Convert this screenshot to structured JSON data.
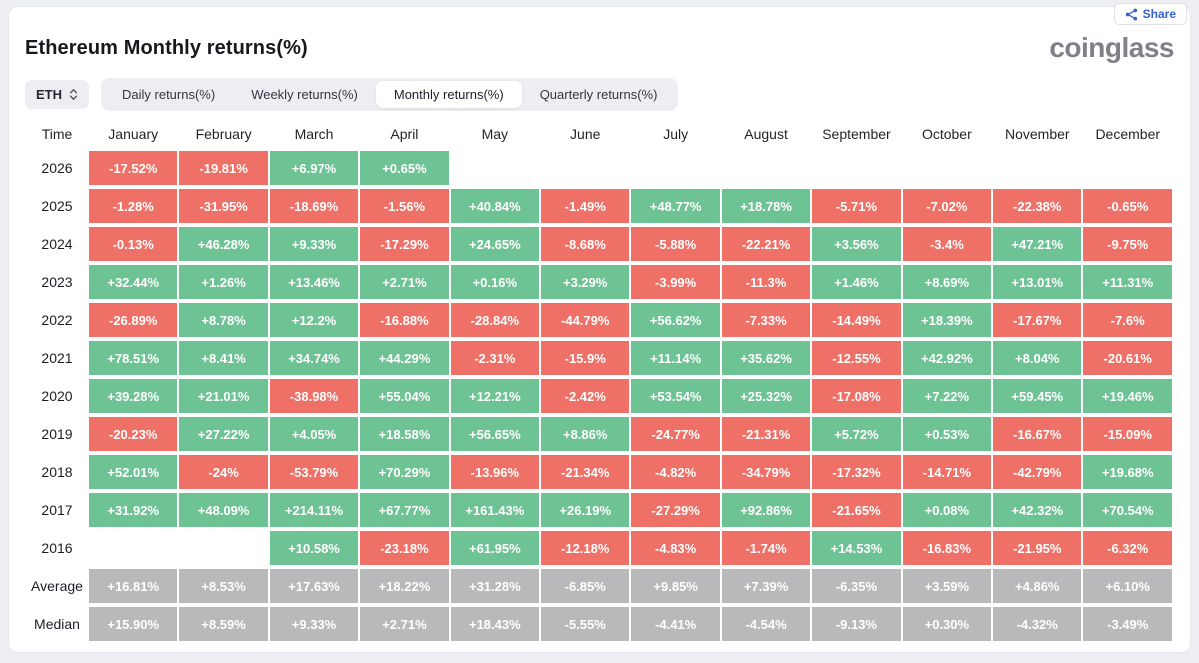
{
  "page": {
    "title": "Ethereum Monthly returns(%)",
    "brand": "coinglass",
    "share_label": "Share"
  },
  "controls": {
    "coin_selector": {
      "value": "ETH",
      "chevron_icon": "up-down-chevron-icon"
    },
    "tabs": [
      {
        "label": "Daily returns(%)",
        "active": false
      },
      {
        "label": "Weekly returns(%)",
        "active": false
      },
      {
        "label": "Monthly returns(%)",
        "active": true
      },
      {
        "label": "Quarterly returns(%)",
        "active": false
      }
    ]
  },
  "colors": {
    "positive": "#6ec394",
    "negative": "#ee7067",
    "neutral": "#b7b9bb",
    "accent_blue": "#3560d6"
  },
  "table": {
    "columns": [
      "Time",
      "January",
      "February",
      "March",
      "April",
      "May",
      "June",
      "July",
      "August",
      "September",
      "October",
      "November",
      "December"
    ],
    "rows": [
      {
        "label": "2026",
        "type": "year",
        "values": [
          "-17.52%",
          "-19.81%",
          "+6.97%",
          "+0.65%",
          "",
          "",
          "",
          "",
          "",
          "",
          "",
          ""
        ]
      },
      {
        "label": "2025",
        "type": "year",
        "values": [
          "-1.28%",
          "-31.95%",
          "-18.69%",
          "-1.56%",
          "+40.84%",
          "-1.49%",
          "+48.77%",
          "+18.78%",
          "-5.71%",
          "-7.02%",
          "-22.38%",
          "-0.65%"
        ]
      },
      {
        "label": "2024",
        "type": "year",
        "values": [
          "-0.13%",
          "+46.28%",
          "+9.33%",
          "-17.29%",
          "+24.65%",
          "-8.68%",
          "-5.88%",
          "-22.21%",
          "+3.56%",
          "-3.4%",
          "+47.21%",
          "-9.75%"
        ]
      },
      {
        "label": "2023",
        "type": "year",
        "values": [
          "+32.44%",
          "+1.26%",
          "+13.46%",
          "+2.71%",
          "+0.16%",
          "+3.29%",
          "-3.99%",
          "-11.3%",
          "+1.46%",
          "+8.69%",
          "+13.01%",
          "+11.31%"
        ]
      },
      {
        "label": "2022",
        "type": "year",
        "values": [
          "-26.89%",
          "+8.78%",
          "+12.2%",
          "-16.88%",
          "-28.84%",
          "-44.79%",
          "+56.62%",
          "-7.33%",
          "-14.49%",
          "+18.39%",
          "-17.67%",
          "-7.6%"
        ]
      },
      {
        "label": "2021",
        "type": "year",
        "values": [
          "+78.51%",
          "+8.41%",
          "+34.74%",
          "+44.29%",
          "-2.31%",
          "-15.9%",
          "+11.14%",
          "+35.62%",
          "-12.55%",
          "+42.92%",
          "+8.04%",
          "-20.61%"
        ]
      },
      {
        "label": "2020",
        "type": "year",
        "values": [
          "+39.28%",
          "+21.01%",
          "-38.98%",
          "+55.04%",
          "+12.21%",
          "-2.42%",
          "+53.54%",
          "+25.32%",
          "-17.08%",
          "+7.22%",
          "+59.45%",
          "+19.46%"
        ]
      },
      {
        "label": "2019",
        "type": "year",
        "values": [
          "-20.23%",
          "+27.22%",
          "+4.05%",
          "+18.58%",
          "+56.65%",
          "+8.86%",
          "-24.77%",
          "-21.31%",
          "+5.72%",
          "+0.53%",
          "-16.67%",
          "-15.09%"
        ]
      },
      {
        "label": "2018",
        "type": "year",
        "values": [
          "+52.01%",
          "-24%",
          "-53.79%",
          "+70.29%",
          "-13.96%",
          "-21.34%",
          "-4.82%",
          "-34.79%",
          "-17.32%",
          "-14.71%",
          "-42.79%",
          "+19.68%"
        ]
      },
      {
        "label": "2017",
        "type": "year",
        "values": [
          "+31.92%",
          "+48.09%",
          "+214.11%",
          "+67.77%",
          "+161.43%",
          "+26.19%",
          "-27.29%",
          "+92.86%",
          "-21.65%",
          "+0.08%",
          "+42.32%",
          "+70.54%"
        ]
      },
      {
        "label": "2016",
        "type": "year",
        "values": [
          "",
          "",
          "+10.58%",
          "-23.18%",
          "+61.95%",
          "-12.18%",
          "-4.83%",
          "-1.74%",
          "+14.53%",
          "-16.83%",
          "-21.95%",
          "-6.32%"
        ]
      },
      {
        "label": "Average",
        "type": "stat",
        "values": [
          "+16.81%",
          "+8.53%",
          "+17.63%",
          "+18.22%",
          "+31.28%",
          "-6.85%",
          "+9.85%",
          "+7.39%",
          "-6.35%",
          "+3.59%",
          "+4.86%",
          "+6.10%"
        ]
      },
      {
        "label": "Median",
        "type": "stat",
        "values": [
          "+15.90%",
          "+8.59%",
          "+9.33%",
          "+2.71%",
          "+18.43%",
          "-5.55%",
          "-4.41%",
          "-4.54%",
          "-9.13%",
          "+0.30%",
          "-4.32%",
          "-3.49%"
        ]
      }
    ]
  }
}
